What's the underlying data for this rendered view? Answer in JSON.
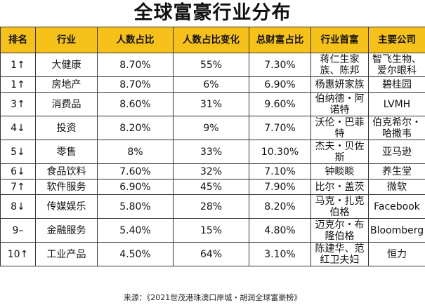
{
  "title": "全球富豪行业分布",
  "headers": [
    "排名",
    "行业",
    "人数占比",
    "人数占比变化",
    "总财富占比",
    "行业首富",
    "主要公司"
  ],
  "rows": [
    {
      "rank": "1↑",
      "industry": "大健康",
      "pct": "8.70%",
      "change": "55%",
      "wealth": "7.30%",
      "richest": "蒋仁生家族、陈邦",
      "company": "智飞生物、爱尔眼科"
    },
    {
      "rank": "1↑",
      "industry": "房地产",
      "pct": "8.70%",
      "change": "6%",
      "wealth": "6.90%",
      "richest": "杨惠妍家族",
      "company": "碧桂园"
    },
    {
      "rank": "3↑",
      "industry": "消费品",
      "pct": "8.60%",
      "change": "31%",
      "wealth": "9.60%",
      "richest": "伯纳德・阿诺特",
      "company": "LVMH"
    },
    {
      "rank": "4↓",
      "industry": "投资",
      "pct": "8.20%",
      "change": "9%",
      "wealth": "7.70%",
      "richest": "沃伦・巴菲特",
      "company": "伯克希尔・哈撒韦"
    },
    {
      "rank": "5↓",
      "industry": "零售",
      "pct": "8%",
      "change": "33%",
      "wealth": "10.30%",
      "richest": "杰夫・贝佐斯",
      "company": "亚马逊"
    },
    {
      "rank": "6↓",
      "industry": "食品饮料",
      "pct": "7.60%",
      "change": "32%",
      "wealth": "7.10%",
      "richest": "钟睒睒",
      "company": "养生堂"
    },
    {
      "rank": "7↑",
      "industry": "软件服务",
      "pct": "6.90%",
      "change": "45%",
      "wealth": "7.90%",
      "richest": "比尔・盖茨",
      "company": "微软"
    },
    {
      "rank": "8↓",
      "industry": "传媒娱乐",
      "pct": "5.80%",
      "change": "28%",
      "wealth": "8.20%",
      "richest": "马克・扎克伯格",
      "company": "Facebook"
    },
    {
      "rank": "9–",
      "industry": "金融服务",
      "pct": "5.40%",
      "change": "15%",
      "wealth": "4.80%",
      "richest": "迈克尔・布隆伯格",
      "company": "Bloomberg"
    },
    {
      "rank": "10↑",
      "industry": "工业产品",
      "pct": "4.50%",
      "change": "64%",
      "wealth": "3.10%",
      "richest": "陈建华、范红卫夫妇",
      "company": "恒力"
    }
  ],
  "source": "来源：《2021世茂港珠澳口岸城・胡润全球富豪榜》"
}
